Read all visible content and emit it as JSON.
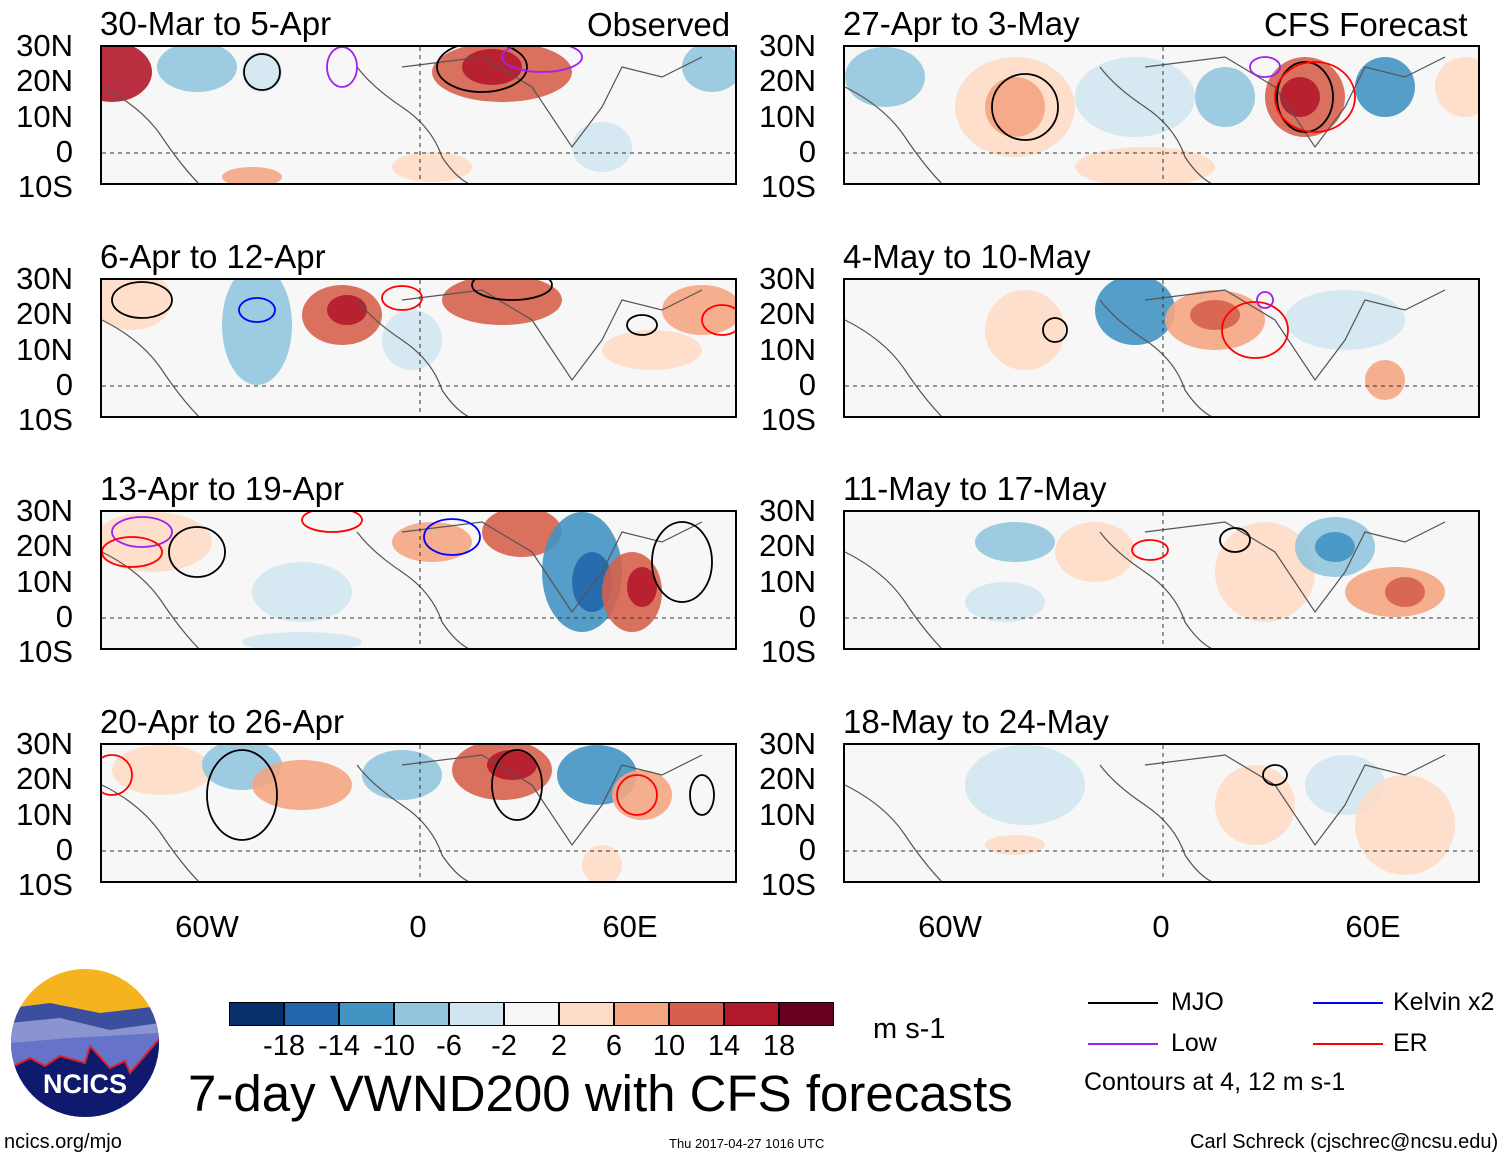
{
  "chart_data": {
    "type": "heatmap",
    "title": "7-day VWND200 with CFS forecasts",
    "units": "m s-1",
    "column_labels": [
      "Observed",
      "CFS Forecast"
    ],
    "lat_ticks": [
      "30N",
      "20N",
      "10N",
      "0",
      "10S"
    ],
    "lon_ticks": [
      "60W",
      "0",
      "60E"
    ],
    "panels": [
      {
        "label": "30-Mar to 5-Apr",
        "group": "Observed"
      },
      {
        "label": "6-Apr to 12-Apr",
        "group": "Observed"
      },
      {
        "label": "13-Apr to 19-Apr",
        "group": "Observed"
      },
      {
        "label": "20-Apr to 26-Apr",
        "group": "Observed"
      },
      {
        "label": "27-Apr to 3-May",
        "group": "CFS Forecast"
      },
      {
        "label": "4-May to 10-May",
        "group": "CFS Forecast"
      },
      {
        "label": "11-May to 17-May",
        "group": "CFS Forecast"
      },
      {
        "label": "18-May to 24-May",
        "group": "CFS Forecast"
      }
    ],
    "colorbar": {
      "ticks": [
        "-18",
        "-14",
        "-10",
        "-6",
        "-2",
        "2",
        "6",
        "10",
        "14",
        "18"
      ],
      "colors": [
        "#08306b",
        "#2166ac",
        "#4393c3",
        "#92c5de",
        "#d1e5f0",
        "#f7f7f7",
        "#fddbc7",
        "#f4a582",
        "#d6604d",
        "#b2182b",
        "#67001f"
      ]
    },
    "legend": [
      {
        "label": "MJO",
        "color": "#000000"
      },
      {
        "label": "Kelvin x2",
        "color": "#0000ff"
      },
      {
        "label": "Low",
        "color": "#a020f0"
      },
      {
        "label": "ER",
        "color": "#ff0000"
      }
    ],
    "contour_note": "Contours at 4, 12 m s-1"
  },
  "footer": {
    "logo_text": "NCICS",
    "url": "ncics.org/mjo",
    "timestamp": "Thu 2017-04-27 1016 UTC",
    "credit": "Carl Schreck (cjschrec@ncsu.edu)"
  }
}
